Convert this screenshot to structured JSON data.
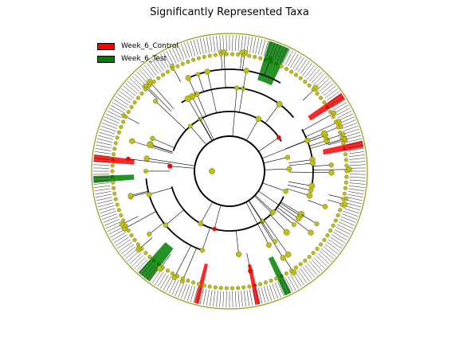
{
  "title": "Significantly Represented Taxa",
  "legend": [
    {
      "label": "Week_6_Control",
      "color": "#ff0000"
    },
    {
      "label": "Week_6_Test",
      "color": "#008000"
    }
  ],
  "colors": {
    "node_default": "#bfbf1a",
    "node_stroke": "#5a5a00",
    "highlight_control": "#ff0000",
    "highlight_test": "#008000",
    "branch": "#000000",
    "outer_ring": "#9a9a14"
  },
  "tree": {
    "levels": 6,
    "leaf_count": 260,
    "clade_arcs": [
      {
        "level": 1,
        "start_deg": -170,
        "end_deg": 0
      },
      {
        "level": 1,
        "start_deg": 0,
        "end_deg": 180
      },
      {
        "level": 2,
        "start_deg": -160,
        "end_deg": -30
      },
      {
        "level": 2,
        "start_deg": 25,
        "end_deg": 165
      },
      {
        "level": 3,
        "start_deg": -125,
        "end_deg": -40
      },
      {
        "level": 3,
        "start_deg": -30,
        "end_deg": 10
      },
      {
        "level": 3,
        "start_deg": 110,
        "end_deg": 175
      },
      {
        "level": 4,
        "start_deg": -115,
        "end_deg": -60
      }
    ],
    "highlighted_clades": [
      {
        "group": "Week_6_Test",
        "start_deg": -73,
        "end_deg": -64
      },
      {
        "group": "Week_6_Test",
        "start_deg": 126,
        "end_deg": 132
      },
      {
        "group": "Week_6_Test",
        "start_deg": 63,
        "end_deg": 66
      },
      {
        "group": "Week_6_Test",
        "start_deg": 175,
        "end_deg": 178
      },
      {
        "group": "Week_6_Control",
        "start_deg": -35,
        "end_deg": -32
      },
      {
        "group": "Week_6_Control",
        "start_deg": -13,
        "end_deg": -10
      },
      {
        "group": "Week_6_Control",
        "start_deg": 103,
        "end_deg": 105
      },
      {
        "group": "Week_6_Control",
        "start_deg": 77,
        "end_deg": 79
      },
      {
        "group": "Week_6_Control",
        "start_deg": -176,
        "end_deg": -173
      }
    ]
  }
}
